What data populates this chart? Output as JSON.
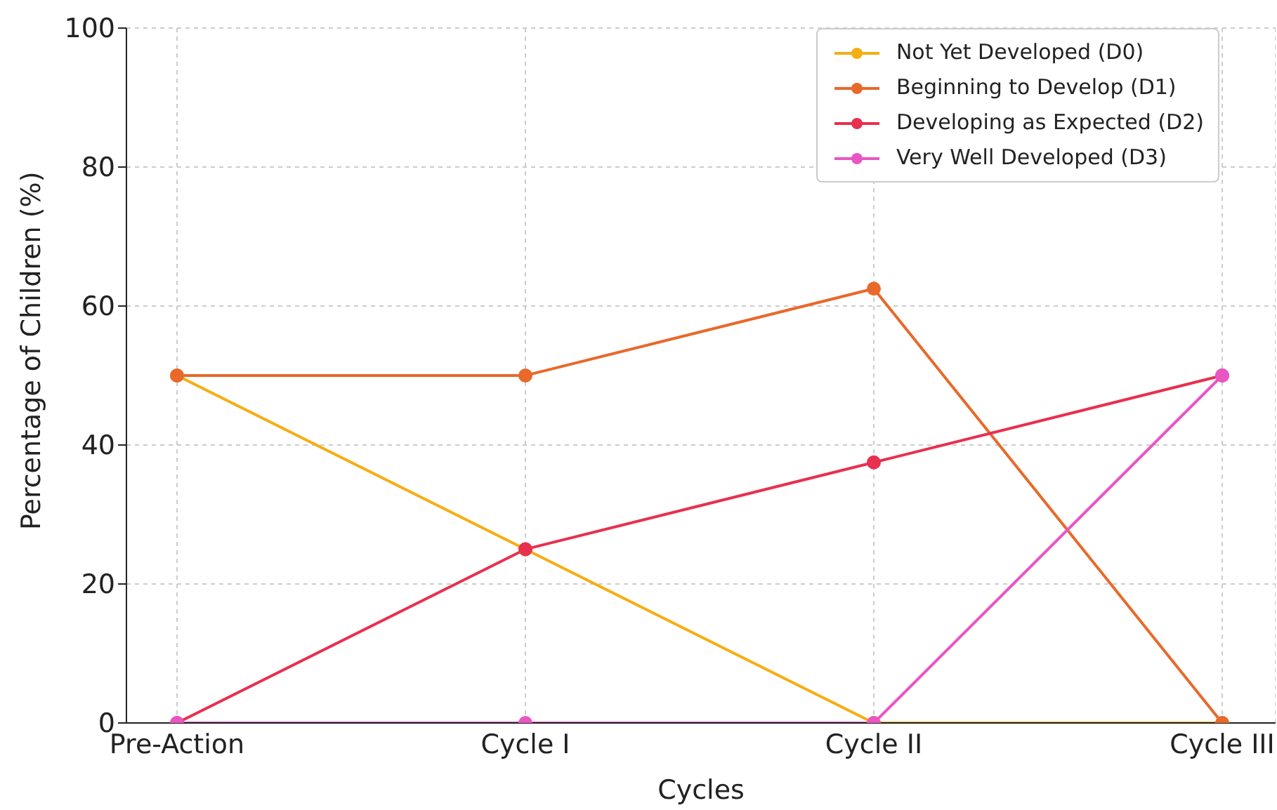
{
  "chart_data": {
    "type": "line",
    "xlabel": "Cycles",
    "ylabel": "Percentage of Children (%)",
    "categories": [
      "Pre-Action",
      "Cycle I",
      "Cycle II",
      "Cycle III"
    ],
    "series": [
      {
        "name": "Not Yet Developed (D0)",
        "color": "#f5ae14",
        "values": [
          50,
          25,
          0,
          0
        ]
      },
      {
        "name": "Beginning to Develop (D1)",
        "color": "#e8692a",
        "values": [
          50,
          50,
          62.5,
          0
        ]
      },
      {
        "name": "Developing as Expected (D2)",
        "color": "#e8304f",
        "values": [
          0,
          25,
          37.5,
          50
        ]
      },
      {
        "name": "Very Well Developed (D3)",
        "color": "#ea55c4",
        "values": [
          0,
          0,
          0,
          50
        ]
      }
    ],
    "ylim": [
      0,
      100
    ],
    "yticks": [
      0,
      20,
      40,
      60,
      80,
      100
    ],
    "grid": true,
    "legend": "top right",
    "marker": "circle",
    "line_style": "solid"
  }
}
